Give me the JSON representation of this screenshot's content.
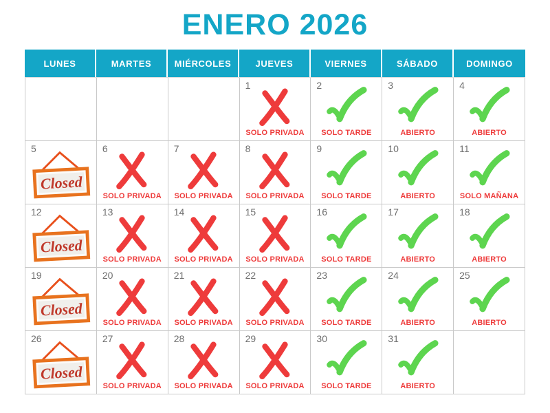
{
  "title": "ENERO 2026",
  "closed_sign_text": "Closed",
  "colors": {
    "accent_cyan": "#14a6c7",
    "red": "#ee3b3b",
    "green": "#5dd54f",
    "orange": "#e8721e",
    "closed_hanger": "#e8501c",
    "closed_text": "#c0392b",
    "day_number": "#6f6f6f",
    "grid_line": "#c9c9c9"
  },
  "weekdays": [
    "LUNES",
    "MARTES",
    "MIÉRCOLES",
    "JUEVES",
    "VIERNES",
    "SÁBADO",
    "DOMINGO"
  ],
  "legend": {
    "x_meaning": "SOLO PRIVADA",
    "check_meanings": [
      "SOLO TARDE",
      "ABIERTO",
      "SOLO MAÑANA"
    ],
    "closed_meaning": "Closed"
  },
  "cells": [
    {
      "day": "",
      "type": "empty",
      "label": ""
    },
    {
      "day": "",
      "type": "empty",
      "label": ""
    },
    {
      "day": "",
      "type": "empty",
      "label": ""
    },
    {
      "day": "1",
      "type": "x",
      "label": "SOLO PRIVADA"
    },
    {
      "day": "2",
      "type": "check",
      "label": "SOLO TARDE"
    },
    {
      "day": "3",
      "type": "check",
      "label": "ABIERTO"
    },
    {
      "day": "4",
      "type": "check",
      "label": "ABIERTO"
    },
    {
      "day": "5",
      "type": "closed",
      "label": ""
    },
    {
      "day": "6",
      "type": "x",
      "label": "SOLO PRIVADA"
    },
    {
      "day": "7",
      "type": "x",
      "label": "SOLO PRIVADA"
    },
    {
      "day": "8",
      "type": "x",
      "label": "SOLO PRIVADA"
    },
    {
      "day": "9",
      "type": "check",
      "label": "SOLO TARDE"
    },
    {
      "day": "10",
      "type": "check",
      "label": "ABIERTO"
    },
    {
      "day": "11",
      "type": "check",
      "label": "SOLO MAÑANA"
    },
    {
      "day": "12",
      "type": "closed",
      "label": ""
    },
    {
      "day": "13",
      "type": "x",
      "label": "SOLO PRIVADA"
    },
    {
      "day": "14",
      "type": "x",
      "label": "SOLO PRIVADA"
    },
    {
      "day": "15",
      "type": "x",
      "label": "SOLO PRIVADA"
    },
    {
      "day": "16",
      "type": "check",
      "label": "SOLO TARDE"
    },
    {
      "day": "17",
      "type": "check",
      "label": "ABIERTO"
    },
    {
      "day": "18",
      "type": "check",
      "label": "ABIERTO"
    },
    {
      "day": "19",
      "type": "closed",
      "label": ""
    },
    {
      "day": "20",
      "type": "x",
      "label": "SOLO PRIVADA"
    },
    {
      "day": "21",
      "type": "x",
      "label": "SOLO PRIVADA"
    },
    {
      "day": "22",
      "type": "x",
      "label": "SOLO PRIVADA"
    },
    {
      "day": "23",
      "type": "check",
      "label": "SOLO TARDE"
    },
    {
      "day": "24",
      "type": "check",
      "label": "ABIERTO"
    },
    {
      "day": "25",
      "type": "check",
      "label": "ABIERTO"
    },
    {
      "day": "26",
      "type": "closed",
      "label": ""
    },
    {
      "day": "27",
      "type": "x",
      "label": "SOLO PRIVADA"
    },
    {
      "day": "28",
      "type": "x",
      "label": "SOLO PRIVADA"
    },
    {
      "day": "29",
      "type": "x",
      "label": "SOLO PRIVADA"
    },
    {
      "day": "30",
      "type": "check",
      "label": "SOLO TARDE"
    },
    {
      "day": "31",
      "type": "check",
      "label": "ABIERTO"
    },
    {
      "day": "",
      "type": "empty",
      "label": ""
    }
  ]
}
